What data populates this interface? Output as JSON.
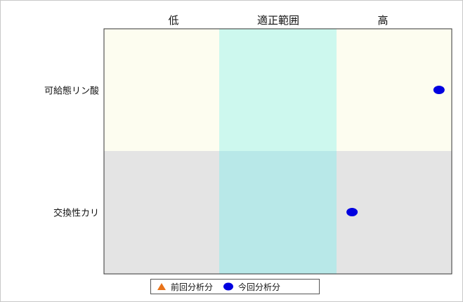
{
  "chart_data": {
    "type": "scatter",
    "columns": [
      "低",
      "適正範囲",
      "高"
    ],
    "categories": [
      "可給態リン酸",
      "交換性カリ"
    ],
    "band_colors": {
      "row1_low": "#fdfdf0",
      "row1_mid": "#cdf8ee",
      "row1_high": "#fdfdf0",
      "row2_low": "#e4e4e4",
      "row2_mid": "#b8e8e8",
      "row2_high": "#e4e4e4"
    },
    "series": [
      {
        "name": "前回分析分",
        "marker": "triangle",
        "color": "#e8731a",
        "points": []
      },
      {
        "name": "今回分析分",
        "marker": "ellipse",
        "color": "#0000e0",
        "points": [
          {
            "category": "可給態リン酸",
            "x": 2.89
          },
          {
            "category": "交換性カリ",
            "x": 2.14
          }
        ]
      }
    ],
    "xlim": [
      0,
      3
    ],
    "grid": false,
    "legend_position": "bottom"
  }
}
